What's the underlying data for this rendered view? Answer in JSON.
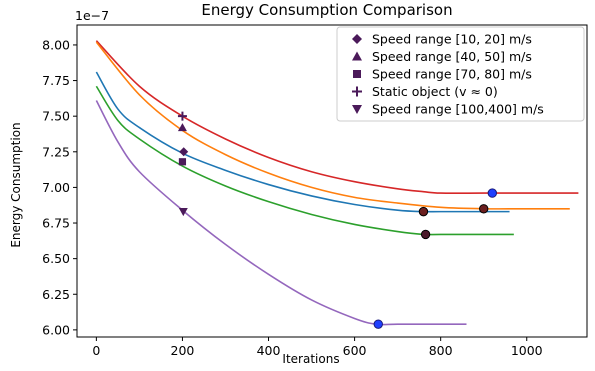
{
  "chart_data": {
    "type": "line",
    "title": "Energy Consumption Comparison",
    "xlabel": "Iterations",
    "ylabel": "Energy Consumption",
    "scale_label": "1e−7",
    "xlim": [
      -45,
      1140
    ],
    "ylim": [
      5.95,
      8.14
    ],
    "xticks": [
      0,
      200,
      400,
      600,
      800,
      1000
    ],
    "yticks": [
      6.0,
      6.25,
      6.5,
      6.75,
      7.0,
      7.25,
      7.5,
      7.75,
      8.0
    ],
    "ytick_labels": [
      "6.00",
      "6.25",
      "6.50",
      "6.75",
      "7.00",
      "7.25",
      "7.50",
      "7.75",
      "8.00"
    ],
    "grid": false,
    "legend_position": "top-right",
    "series": [
      {
        "color": "#d62728",
        "x": [
          0,
          100,
          200,
          300,
          400,
          500,
          600,
          700,
          760,
          800,
          900,
          1000,
          1120
        ],
        "y": [
          8.03,
          7.71,
          7.5,
          7.34,
          7.21,
          7.11,
          7.04,
          6.99,
          6.97,
          6.96,
          6.96,
          6.96,
          6.96
        ]
      },
      {
        "color": "#ff7f0e",
        "x": [
          0,
          100,
          200,
          300,
          400,
          500,
          600,
          700,
          800,
          900,
          1000,
          1100
        ],
        "y": [
          8.02,
          7.65,
          7.4,
          7.23,
          7.1,
          7.0,
          6.93,
          6.89,
          6.86,
          6.85,
          6.85,
          6.85
        ]
      },
      {
        "color": "#1f77b4",
        "x": [
          0,
          50,
          100,
          200,
          300,
          400,
          500,
          600,
          700,
          760,
          800,
          900,
          960
        ],
        "y": [
          7.81,
          7.55,
          7.42,
          7.24,
          7.12,
          7.02,
          6.94,
          6.88,
          6.84,
          6.83,
          6.83,
          6.83,
          6.83
        ]
      },
      {
        "color": "#2ca02c",
        "x": [
          0,
          50,
          100,
          200,
          300,
          400,
          500,
          600,
          700,
          760,
          800,
          900,
          970
        ],
        "y": [
          7.71,
          7.47,
          7.34,
          7.15,
          7.01,
          6.9,
          6.81,
          6.74,
          6.69,
          6.67,
          6.67,
          6.67,
          6.67
        ]
      },
      {
        "color": "#9467bd",
        "x": [
          0,
          50,
          100,
          200,
          300,
          400,
          500,
          600,
          650,
          700,
          800,
          860
        ],
        "y": [
          7.61,
          7.32,
          7.11,
          6.84,
          6.6,
          6.39,
          6.21,
          6.08,
          6.04,
          6.04,
          6.04,
          6.04
        ]
      }
    ],
    "convergence_points": [
      {
        "x": 920,
        "y": 6.96,
        "color": "#1f3fff",
        "outline": "#1a1a7a"
      },
      {
        "x": 760,
        "y": 6.83,
        "color": "#6b1f1f",
        "outline": "#000000"
      },
      {
        "x": 900,
        "y": 6.85,
        "color": "#6b1f1f",
        "outline": "#000000"
      },
      {
        "x": 765,
        "y": 6.67,
        "color": "#4a1a2a",
        "outline": "#000000"
      },
      {
        "x": 655,
        "y": 6.04,
        "color": "#1f3fff",
        "outline": "#1a1a7a"
      }
    ],
    "markers": [
      {
        "marker": "diamond",
        "x": 203,
        "y": 7.25,
        "label": "Speed range [10, 20] m/s"
      },
      {
        "marker": "triangle-up",
        "x": 200,
        "y": 7.42,
        "label": "Speed range [40, 50] m/s"
      },
      {
        "marker": "square",
        "x": 200,
        "y": 7.18,
        "label": "Speed range [70, 80] m/s"
      },
      {
        "marker": "plus",
        "x": 200,
        "y": 7.5,
        "label": "Static object (v ≈ 0)"
      },
      {
        "marker": "triangle-down",
        "x": 202,
        "y": 6.83,
        "label": "Speed range [100,400] m/s"
      }
    ],
    "marker_color": "#4b1a5a"
  }
}
